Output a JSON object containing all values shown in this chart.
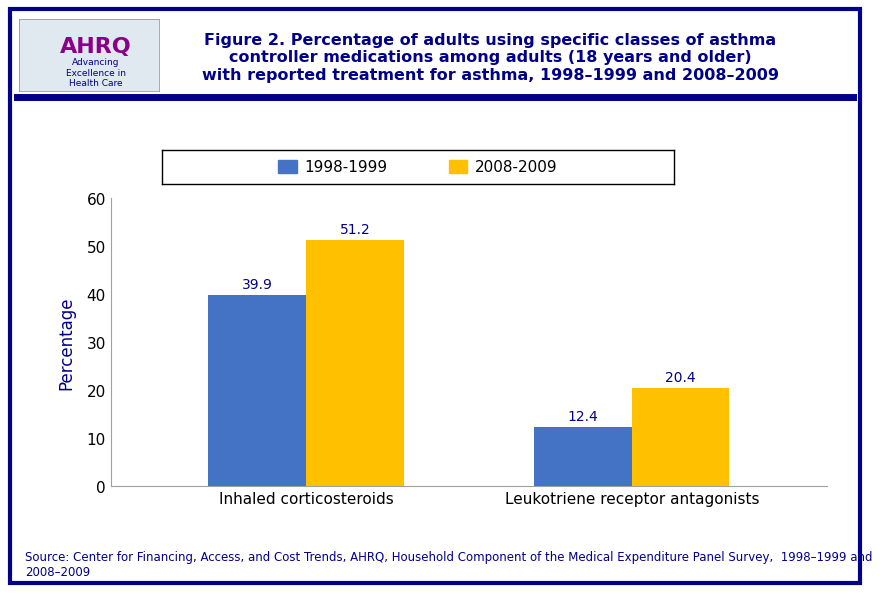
{
  "categories": [
    "Inhaled corticosteroids",
    "Leukotriene receptor antagonists"
  ],
  "series": [
    {
      "label": "1998-1999",
      "values": [
        39.9,
        12.4
      ],
      "color": "#4472C4"
    },
    {
      "label": "2008-2009",
      "values": [
        51.2,
        20.4
      ],
      "color": "#FFC000"
    }
  ],
  "ylim": [
    0,
    60
  ],
  "yticks": [
    0,
    10,
    20,
    30,
    40,
    50,
    60
  ],
  "ylabel": "Percentage",
  "title": "Figure 2. Percentage of adults using specific classes of asthma\ncontroller medications among adults (18 years and older)\nwith reported treatment for asthma, 1998–1999 and 2008–2009",
  "source_text": "Source: Center for Financing, Access, and Cost Trends, AHRQ, Household Component of the Medical Expenditure Panel Survey,  1998–1999 and\n2008–2009",
  "bar_width": 0.3,
  "bg_color": "#FFFFFF",
  "border_color": "#00008B",
  "title_color": "#00008B",
  "axis_label_color": "#00008B",
  "tick_label_color": "#000000",
  "value_label_color": "#00008B",
  "source_color": "#00008B"
}
